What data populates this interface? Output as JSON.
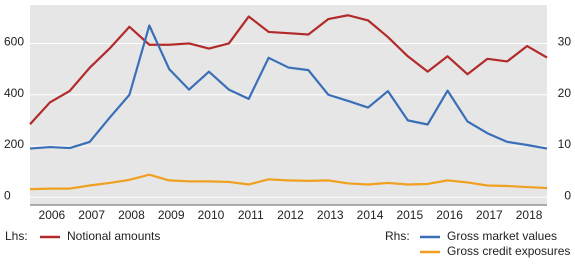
{
  "chart_data": {
    "type": "line",
    "x": [
      2005.5,
      2006,
      2006.5,
      2007,
      2007.5,
      2008,
      2008.5,
      2009,
      2009.5,
      2010,
      2010.5,
      2011,
      2011.5,
      2012,
      2012.5,
      2013,
      2013.5,
      2014,
      2014.5,
      2015,
      2015.5,
      2016,
      2016.5,
      2017,
      2017.5,
      2018,
      2018.5
    ],
    "xlim": [
      2005.5,
      2018.5
    ],
    "xticks": [
      2006,
      2007,
      2008,
      2009,
      2010,
      2011,
      2012,
      2013,
      2014,
      2015,
      2016,
      2017,
      2018
    ],
    "ylim": [
      -30,
      750
    ],
    "yticks": [
      0,
      200,
      400,
      600
    ],
    "y2lim": [
      -1.5,
      37.5
    ],
    "y2ticks": [
      0,
      10,
      20,
      30
    ],
    "grid": true,
    "legend_lhs": "Lhs:",
    "legend_rhs": "Rhs:",
    "series": [
      {
        "name": "Notional amounts",
        "color": "#b22a2a",
        "axis": "y",
        "values": [
          285,
          370,
          415,
          505,
          580,
          665,
          595,
          595,
          600,
          580,
          600,
          705,
          645,
          640,
          635,
          695,
          710,
          690,
          625,
          550,
          490,
          550,
          480,
          540,
          530,
          590,
          545
        ]
      },
      {
        "name": "Gross market values",
        "color": "#3a6fb8",
        "axis": "y2",
        "values": [
          9.5,
          9.8,
          9.6,
          10.8,
          15.5,
          20.0,
          33.5,
          25,
          21,
          24.5,
          21,
          19.2,
          27.2,
          25.3,
          24.8,
          20,
          18.8,
          17.5,
          20.7,
          15,
          14.2,
          20.8,
          14.8,
          12.5,
          10.8,
          10.2,
          9.5
        ]
      },
      {
        "name": "Gross credit exposures",
        "color": "#f0a020",
        "axis": "y2",
        "values": [
          1.6,
          1.7,
          1.7,
          2.3,
          2.8,
          3.4,
          4.4,
          3.3,
          3.1,
          3.1,
          3.0,
          2.5,
          3.5,
          3.3,
          3.2,
          3.3,
          2.7,
          2.5,
          2.8,
          2.5,
          2.6,
          3.3,
          2.9,
          2.3,
          2.2,
          2.0,
          1.8
        ]
      }
    ]
  }
}
